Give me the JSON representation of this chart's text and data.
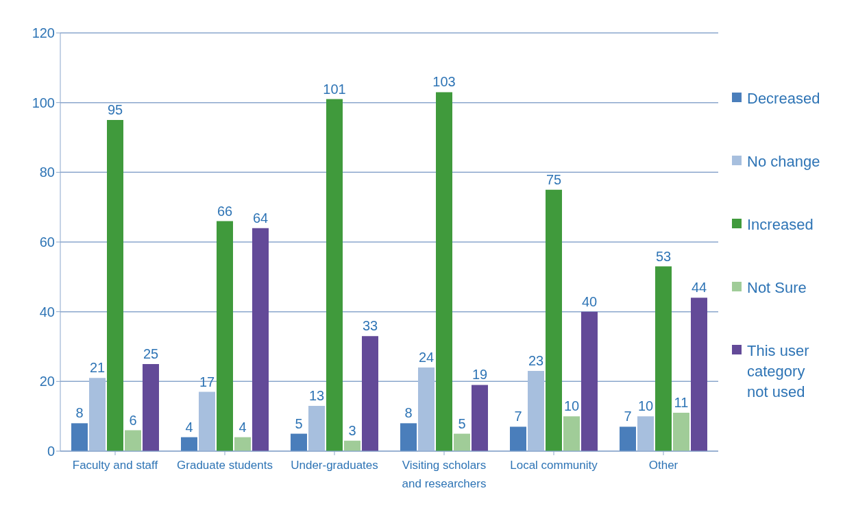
{
  "chart_data": {
    "type": "bar",
    "categories": [
      "Faculty and staff",
      "Graduate students",
      "Under-graduates",
      "Visiting scholars and researchers",
      "Local community",
      "Other"
    ],
    "series": [
      {
        "name": "Decreased",
        "color": "#4a7ebb",
        "values": [
          8,
          4,
          5,
          8,
          7,
          7
        ]
      },
      {
        "name": "No change",
        "color": "#a7bfde",
        "values": [
          21,
          17,
          13,
          24,
          23,
          10
        ]
      },
      {
        "name": "Increased",
        "color": "#409a3c",
        "values": [
          95,
          66,
          101,
          103,
          75,
          53
        ]
      },
      {
        "name": "Not Sure",
        "color": "#a0cc98",
        "values": [
          6,
          4,
          3,
          5,
          10,
          11
        ]
      },
      {
        "name": "This user category not used",
        "color": "#634a98",
        "values": [
          25,
          64,
          33,
          19,
          40,
          44
        ]
      }
    ],
    "ylim": [
      0,
      120
    ],
    "yticks": [
      0,
      20,
      40,
      60,
      80,
      100,
      120
    ],
    "grid": "y",
    "legend": "right",
    "data_labels": true
  }
}
